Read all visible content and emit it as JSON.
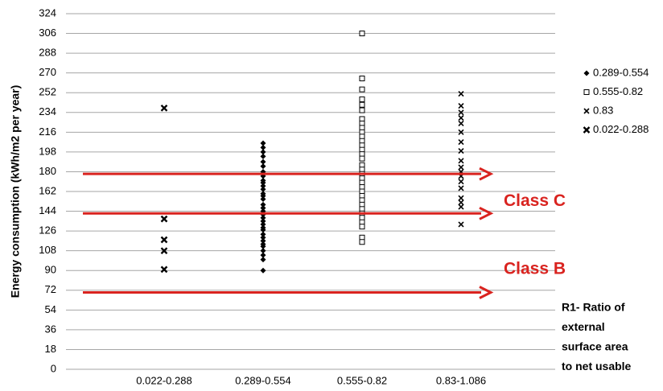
{
  "chart_data": {
    "type": "strip",
    "y_label": "Energy consumption (kWh/m2 per year)",
    "x_label_lines": [
      "R1- Ratio of",
      "external",
      "surface area",
      "to net usable"
    ],
    "categories": [
      "0.022-0.288",
      "0.289-0.554",
      "0.555-0.82",
      "0.83-1.086"
    ],
    "ylim": [
      0,
      324
    ],
    "yticks": [
      0,
      18,
      36,
      54,
      72,
      90,
      108,
      126,
      144,
      162,
      180,
      198,
      216,
      234,
      252,
      270,
      288,
      306,
      324
    ],
    "grid": true,
    "legend": "right",
    "series": [
      {
        "name": "0.289-0.554",
        "marker": "diamond",
        "color": "#000000",
        "x": [
          "0.289-0.554",
          "0.289-0.554",
          "0.289-0.554",
          "0.289-0.554",
          "0.289-0.554",
          "0.289-0.554",
          "0.289-0.554",
          "0.289-0.554",
          "0.289-0.554",
          "0.289-0.554",
          "0.289-0.554",
          "0.289-0.554",
          "0.289-0.554",
          "0.289-0.554",
          "0.289-0.554",
          "0.289-0.554",
          "0.289-0.554",
          "0.289-0.554",
          "0.289-0.554",
          "0.289-0.554",
          "0.289-0.554",
          "0.289-0.554",
          "0.289-0.554",
          "0.289-0.554",
          "0.289-0.554",
          "0.289-0.554",
          "0.289-0.554",
          "0.289-0.554",
          "0.289-0.554",
          "0.289-0.554",
          "0.289-0.554",
          "0.289-0.554",
          "0.289-0.554"
        ],
        "values": [
          206,
          202,
          198,
          194,
          189,
          185,
          180,
          176,
          172,
          170,
          167,
          164,
          160,
          158,
          155,
          150,
          147,
          144,
          141,
          138,
          135,
          132,
          129,
          127,
          123,
          120,
          117,
          114,
          112,
          108,
          104,
          100,
          90
        ]
      },
      {
        "name": "0.555-0.82",
        "marker": "square",
        "color": "#000000",
        "x": [
          "0.555-0.82",
          "0.555-0.82",
          "0.555-0.82",
          "0.555-0.82",
          "0.555-0.82",
          "0.555-0.82",
          "0.555-0.82",
          "0.555-0.82",
          "0.555-0.82",
          "0.555-0.82",
          "0.555-0.82",
          "0.555-0.82",
          "0.555-0.82",
          "0.555-0.82",
          "0.555-0.82",
          "0.555-0.82",
          "0.555-0.82",
          "0.555-0.82",
          "0.555-0.82",
          "0.555-0.82",
          "0.555-0.82",
          "0.555-0.82",
          "0.555-0.82",
          "0.555-0.82",
          "0.555-0.82",
          "0.555-0.82",
          "0.555-0.82",
          "0.555-0.82",
          "0.555-0.82",
          "0.555-0.82",
          "0.555-0.82",
          "0.555-0.82",
          "0.555-0.82"
        ],
        "values": [
          306,
          265,
          255,
          246,
          241,
          236,
          228,
          224,
          220,
          216,
          212,
          208,
          204,
          200,
          196,
          192,
          186,
          182,
          178,
          174,
          170,
          166,
          162,
          158,
          154,
          150,
          146,
          142,
          138,
          134,
          130,
          120,
          116
        ]
      },
      {
        "name": "0.83",
        "marker": "x",
        "color": "#000000",
        "x": [
          "0.83-1.086",
          "0.83-1.086",
          "0.83-1.086",
          "0.83-1.086",
          "0.83-1.086",
          "0.83-1.086",
          "0.83-1.086",
          "0.83-1.086",
          "0.83-1.086",
          "0.83-1.086",
          "0.83-1.086",
          "0.83-1.086",
          "0.83-1.086",
          "0.83-1.086",
          "0.83-1.086",
          "0.83-1.086",
          "0.83-1.086",
          "0.83-1.086"
        ],
        "values": [
          251,
          240,
          234,
          229,
          224,
          216,
          207,
          199,
          190,
          184,
          180,
          176,
          171,
          165,
          156,
          152,
          148,
          132
        ]
      },
      {
        "name": "0.022-0.288",
        "marker": "x-bold",
        "color": "#000000",
        "x": [
          "0.022-0.288",
          "0.022-0.288",
          "0.022-0.288",
          "0.022-0.288",
          "0.022-0.288"
        ],
        "values": [
          238,
          137,
          118,
          108,
          91
        ]
      }
    ],
    "reference_lines": {
      "color": "#d9231f",
      "values": [
        178,
        142,
        70
      ]
    },
    "annotations": [
      {
        "text": "Class C",
        "y": 153
      },
      {
        "text": "Class B",
        "y": 91
      }
    ]
  }
}
